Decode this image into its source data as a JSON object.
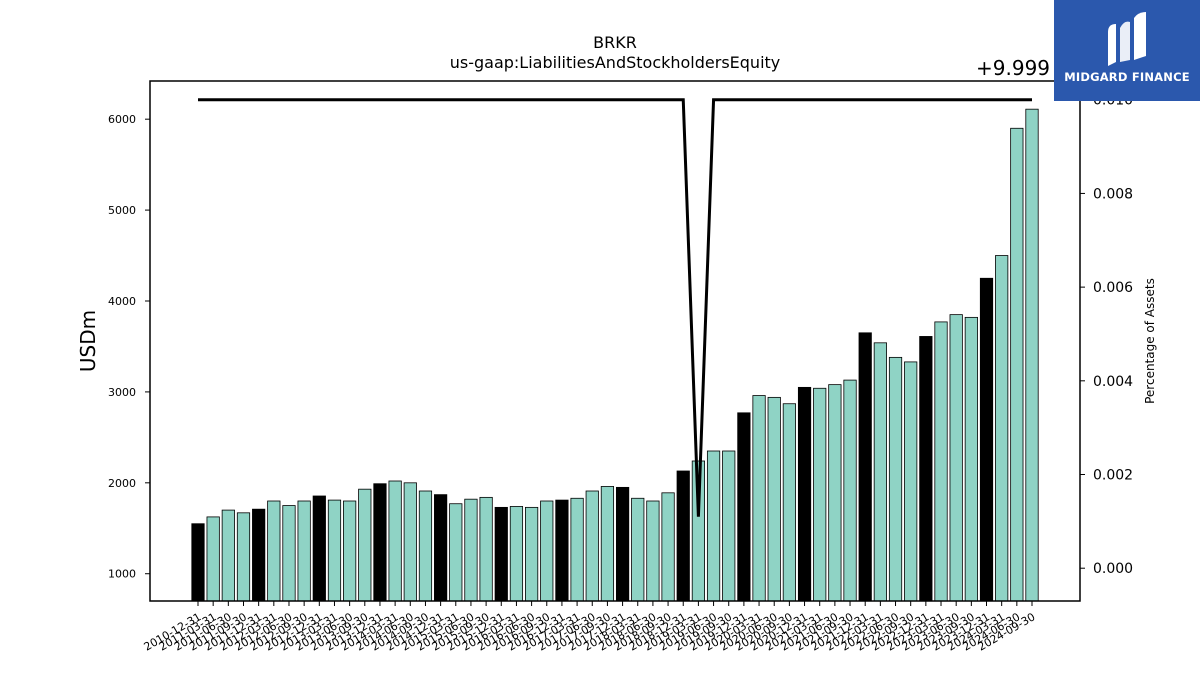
{
  "chart_data": {
    "type": "bar",
    "title": "BRKR",
    "subtitle": "us-gaap:LiabilitiesAndStockholdersEquity",
    "ylabel": "USDm",
    "y2label": "Percentage of Assets",
    "y2_offset_text": "+9.999",
    "ylim": [
      700,
      6420
    ],
    "y2lim": [
      -0.0007,
      0.0104
    ],
    "yticks": [
      1000,
      2000,
      3000,
      4000,
      5000,
      6000
    ],
    "y2ticks": [
      "0.000",
      "0.002",
      "0.004",
      "0.006",
      "0.008",
      "0.010"
    ],
    "y2tick_values": [
      0.0,
      0.002,
      0.004,
      0.006,
      0.008,
      0.01
    ],
    "grid": false,
    "categories": [
      "2010-12-31",
      "2011-03-31",
      "2011-06-30",
      "2011-09-30",
      "2011-12-31",
      "2012-03-31",
      "2012-06-30",
      "2012-09-30",
      "2012-12-31",
      "2013-03-31",
      "2013-06-30",
      "2013-09-30",
      "2013-12-31",
      "2014-03-31",
      "2014-06-30",
      "2014-09-30",
      "2014-12-31",
      "2015-03-31",
      "2015-06-30",
      "2015-09-30",
      "2015-12-31",
      "2016-03-31",
      "2016-06-30",
      "2016-09-30",
      "2016-12-31",
      "2017-03-31",
      "2017-06-30",
      "2017-09-30",
      "2017-12-31",
      "2018-03-31",
      "2018-06-30",
      "2018-09-30",
      "2018-12-31",
      "2019-03-31",
      "2019-06-30",
      "2019-09-30",
      "2019-12-31",
      "2020-03-31",
      "2020-06-30",
      "2020-09-30",
      "2020-12-31",
      "2021-03-31",
      "2021-06-30",
      "2021-09-30",
      "2021-12-31",
      "2022-03-31",
      "2022-06-30",
      "2022-09-30",
      "2022-12-31",
      "2023-03-31",
      "2023-06-30",
      "2023-09-30",
      "2023-12-31",
      "2024-03-31",
      "2024-06-30",
      "2024-09-30"
    ],
    "values": [
      1550,
      1625,
      1700,
      1670,
      1710,
      1800,
      1750,
      1800,
      1855,
      1810,
      1800,
      1930,
      1990,
      2020,
      2000,
      1910,
      1870,
      1770,
      1820,
      1840,
      1730,
      1740,
      1730,
      1800,
      1810,
      1830,
      1910,
      1960,
      1950,
      1830,
      1800,
      1890,
      2130,
      2240,
      2350,
      2350,
      2770,
      2960,
      2940,
      2870,
      3050,
      3040,
      3080,
      3130,
      3650,
      3540,
      3380,
      3330,
      3610,
      3770,
      3850,
      3820,
      4250,
      4500,
      5900,
      6110
    ],
    "highlight_indices": [
      0,
      4,
      8,
      12,
      16,
      20,
      24,
      28,
      32,
      36,
      40,
      44,
      48,
      52
    ],
    "highlight_color": "#000000",
    "bar_color": "#8fd3c5",
    "line_series": {
      "name": "Percentage of Assets",
      "color": "#000000",
      "offset": 9.999,
      "values": [
        0.01,
        0.01,
        0.01,
        0.01,
        0.01,
        0.01,
        0.01,
        0.01,
        0.01,
        0.01,
        0.01,
        0.01,
        0.01,
        0.01,
        0.01,
        0.01,
        0.01,
        0.01,
        0.01,
        0.01,
        0.01,
        0.01,
        0.01,
        0.01,
        0.01,
        0.01,
        0.01,
        0.01,
        0.01,
        0.01,
        0.01,
        0.01,
        0.01,
        0.0011,
        0.01,
        0.01,
        0.01,
        0.01,
        0.01,
        0.01,
        0.01,
        0.01,
        0.01,
        0.01,
        0.01,
        0.01,
        0.01,
        0.01,
        0.01,
        0.01,
        0.01,
        0.01,
        0.01,
        0.01,
        0.01,
        0.01
      ]
    }
  },
  "logo": {
    "text": "MIDGARD FINANCE",
    "bg_color": "#2b58ad"
  }
}
